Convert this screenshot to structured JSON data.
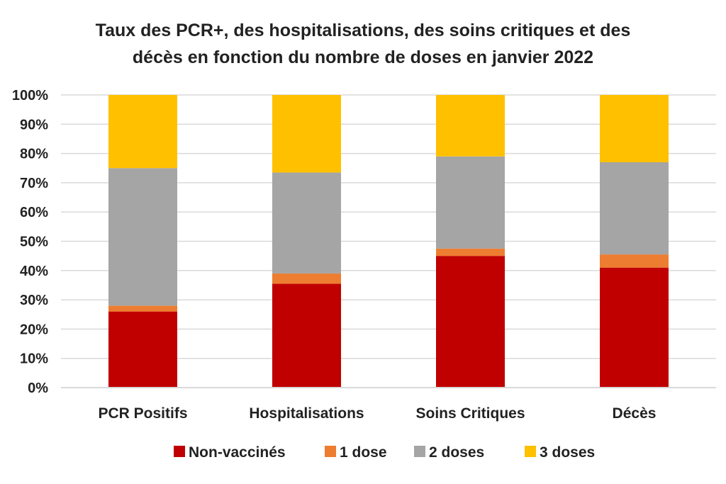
{
  "chart_data": {
    "type": "bar",
    "stacked": true,
    "title_line1": "Taux des PCR+, des hospitalisations, des soins critiques et des",
    "title_line2": "décès en fonction du nombre de doses en janvier 2022",
    "categories": [
      "PCR Positifs",
      "Hospitalisations",
      "Soins Critiques",
      "Décès"
    ],
    "y_ticks": [
      "0%",
      "10%",
      "20%",
      "30%",
      "40%",
      "50%",
      "60%",
      "70%",
      "80%",
      "90%",
      "100%"
    ],
    "ylim": [
      0,
      100
    ],
    "grid": true,
    "legend_position": "bottom",
    "series": [
      {
        "name": "Non-vaccinés",
        "color": "#C00000",
        "values": [
          26,
          35.5,
          45,
          41
        ]
      },
      {
        "name": "1 dose",
        "color": "#ED7D31",
        "values": [
          2,
          3.5,
          2.5,
          4.5
        ]
      },
      {
        "name": "2 doses",
        "color": "#A5A5A5",
        "values": [
          47,
          34.5,
          31.5,
          31.5
        ]
      },
      {
        "name": "3 doses",
        "color": "#FFC000",
        "values": [
          25,
          26.5,
          21,
          23
        ]
      }
    ]
  }
}
